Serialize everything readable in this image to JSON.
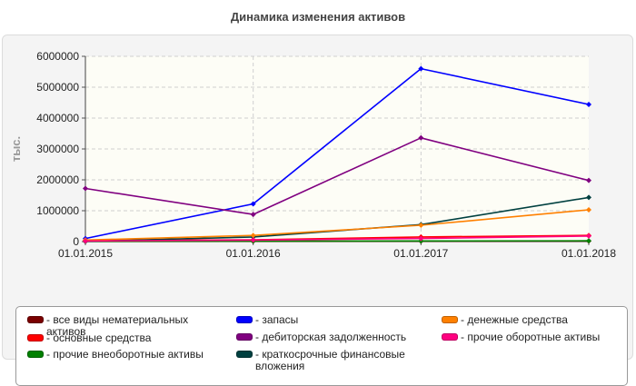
{
  "title": "Динамика изменения активов",
  "chart_data": {
    "type": "line",
    "title": "Динамика изменения активов",
    "xlabel": "",
    "ylabel": "тыс.",
    "ylim": [
      0,
      6000000
    ],
    "yticks": [
      0,
      1000000,
      2000000,
      3000000,
      4000000,
      5000000,
      6000000
    ],
    "yticklabels": [
      "0",
      "1000000",
      "2000000",
      "3000000",
      "4000000",
      "5000000",
      "6000000"
    ],
    "categories": [
      "01.01.2015",
      "01.01.2016",
      "01.01.2017",
      "01.01.2018"
    ],
    "grid": true,
    "legend_position": "bottom",
    "series": [
      {
        "name": "- все виды нематериальных активов",
        "color": "#7a0000",
        "values": [
          5000,
          10000,
          15000,
          20000
        ]
      },
      {
        "name": "- основные средства",
        "color": "#ff0000",
        "values": [
          30000,
          60000,
          150000,
          200000
        ]
      },
      {
        "name": "- прочие внеоборотные активы",
        "color": "#008000",
        "values": [
          10000,
          15000,
          20000,
          25000
        ]
      },
      {
        "name": "- запасы",
        "color": "#0000ff",
        "values": [
          100000,
          1220000,
          5600000,
          4440000
        ]
      },
      {
        "name": "- дебиторская задолженность",
        "color": "#800080",
        "values": [
          1720000,
          880000,
          3360000,
          1980000
        ]
      },
      {
        "name": "- краткосрочные финансовые вложения",
        "color": "#004040",
        "values": [
          10000,
          150000,
          550000,
          1430000
        ]
      },
      {
        "name": "- денежные средства",
        "color": "#ff8000",
        "values": [
          50000,
          200000,
          530000,
          1030000
        ]
      },
      {
        "name": "- прочие оборотные активы",
        "color": "#ff0080",
        "values": [
          20000,
          50000,
          100000,
          180000
        ]
      }
    ]
  }
}
